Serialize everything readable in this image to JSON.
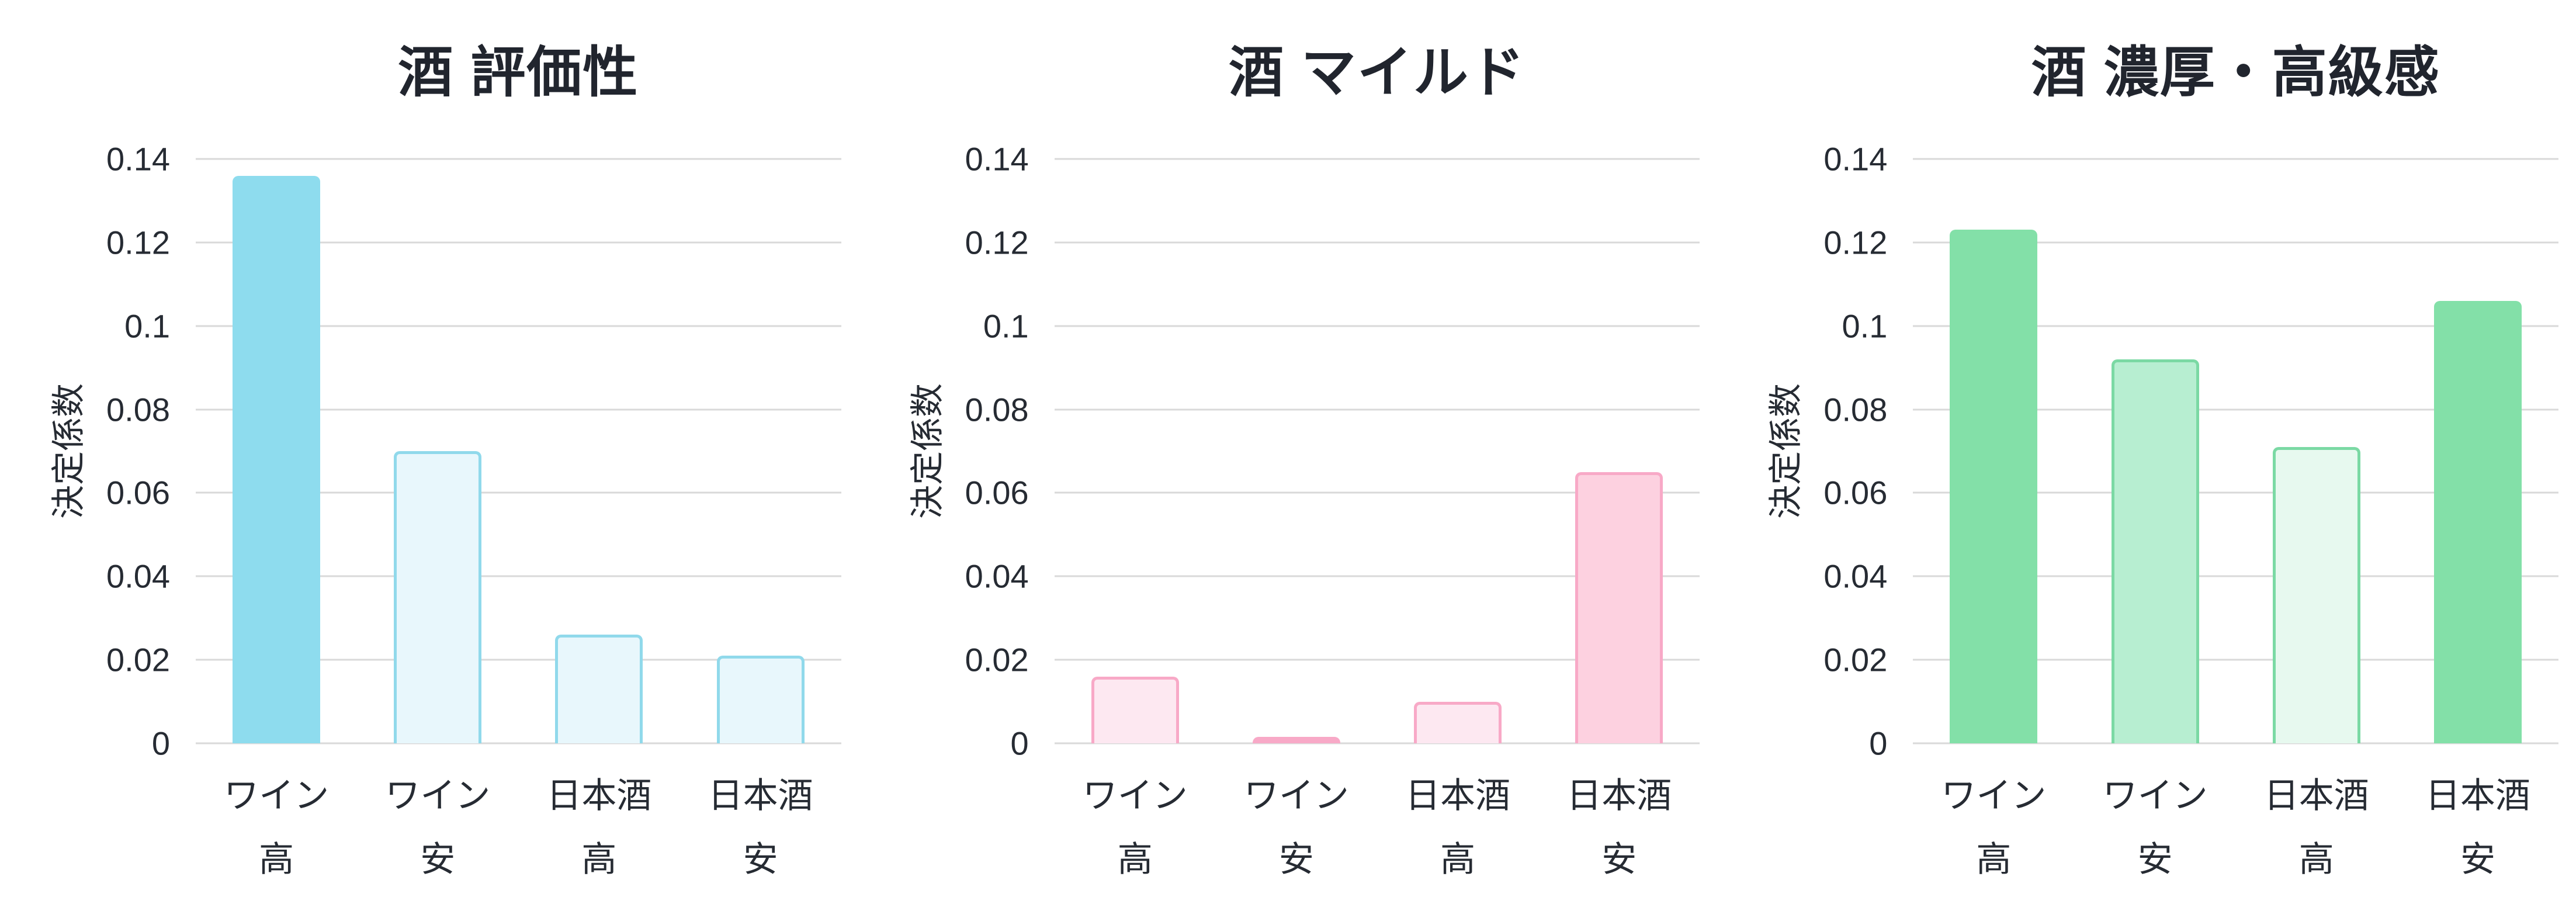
{
  "page": {
    "background": "#ffffff",
    "text_color": "#262b33",
    "title_color": "#21252e",
    "gridline_color": "#d9d9d9"
  },
  "chart_data": [
    {
      "type": "bar",
      "title": "酒 評価性",
      "ylabel": "決定係数",
      "ylim": [
        0,
        0.14
      ],
      "grid": true,
      "yticks": [
        0,
        0.02,
        0.04,
        0.06,
        0.08,
        0.1,
        0.12,
        0.14
      ],
      "ytick_labels": [
        "0",
        "0.02",
        "0.04",
        "0.06",
        "0.08",
        "0.1",
        "0.12",
        "0.14"
      ],
      "categories": [
        [
          "ワイン",
          "高"
        ],
        [
          "ワイン",
          "安"
        ],
        [
          "日本酒",
          "高"
        ],
        [
          "日本酒",
          "安"
        ]
      ],
      "values": [
        0.136,
        0.07,
        0.026,
        0.021
      ],
      "bar_styles": [
        {
          "fill": "#8edcee",
          "border": "#8edcee"
        },
        {
          "fill": "#e8f7fc",
          "border": "#90d9eb"
        },
        {
          "fill": "#e8f7fc",
          "border": "#90d9eb"
        },
        {
          "fill": "#e8f7fc",
          "border": "#90d9eb"
        }
      ]
    },
    {
      "type": "bar",
      "title": "酒 マイルド",
      "ylabel": "決定係数",
      "ylim": [
        0,
        0.14
      ],
      "grid": true,
      "yticks": [
        0,
        0.02,
        0.04,
        0.06,
        0.08,
        0.1,
        0.12,
        0.14
      ],
      "ytick_labels": [
        "0",
        "0.02",
        "0.04",
        "0.06",
        "0.08",
        "0.1",
        "0.12",
        "0.14"
      ],
      "categories": [
        [
          "ワイン",
          "高"
        ],
        [
          "ワイン",
          "安"
        ],
        [
          "日本酒",
          "高"
        ],
        [
          "日本酒",
          "安"
        ]
      ],
      "values": [
        0.016,
        0.0015,
        0.01,
        0.065
      ],
      "bar_styles": [
        {
          "fill": "#fde8f1",
          "border": "#f8a9c7"
        },
        {
          "fill": "#f8a9c7",
          "border": "#f8a9c7"
        },
        {
          "fill": "#fde8f1",
          "border": "#f8a9c7"
        },
        {
          "fill": "#fdd1e0",
          "border": "#f8a9c7"
        }
      ]
    },
    {
      "type": "bar",
      "title": "酒 濃厚・高級感",
      "ylabel": "決定係数",
      "ylim": [
        0,
        0.14
      ],
      "grid": true,
      "yticks": [
        0,
        0.02,
        0.04,
        0.06,
        0.08,
        0.1,
        0.12,
        0.14
      ],
      "ytick_labels": [
        "0",
        "0.02",
        "0.04",
        "0.06",
        "0.08",
        "0.1",
        "0.12",
        "0.14"
      ],
      "categories": [
        [
          "ワイン",
          "高"
        ],
        [
          "ワイン",
          "安"
        ],
        [
          "日本酒",
          "高"
        ],
        [
          "日本酒",
          "安"
        ]
      ],
      "values": [
        0.123,
        0.092,
        0.071,
        0.106
      ],
      "bar_styles": [
        {
          "fill": "#83e0a8",
          "border": "#83e0a8"
        },
        {
          "fill": "#b7eed1",
          "border": "#7bd9a4"
        },
        {
          "fill": "#e7f9ef",
          "border": "#7bd9a4"
        },
        {
          "fill": "#83e0a8",
          "border": "#83e0a8"
        }
      ]
    }
  ]
}
